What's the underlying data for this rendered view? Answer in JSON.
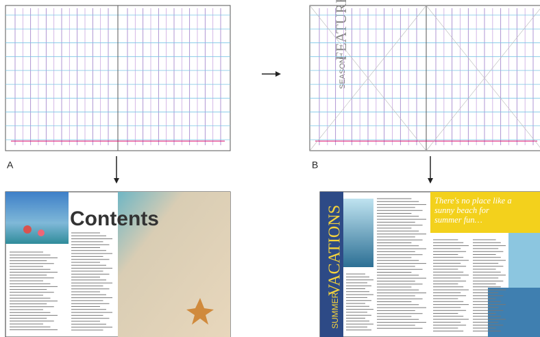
{
  "labels": {
    "a": "A",
    "b": "B"
  },
  "master_b": {
    "kicker": "SEASON",
    "title": "FEATURE"
  },
  "layout_a": {
    "title": "Contents"
  },
  "layout_b": {
    "kicker": "SUMMER",
    "title": "VACATIONS",
    "headline": "There's no place like a sunny beach for summer fun…"
  }
}
